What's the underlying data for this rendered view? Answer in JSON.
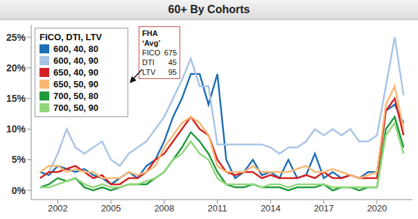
{
  "chart_data": {
    "type": "line",
    "title": "60+ By Cohorts",
    "legend_title": "FICO, DTI, LTV",
    "legend": "upper left",
    "grid": false,
    "annotation": {
      "title": "FHA ‘Avg’",
      "rows": [
        {
          "label": "FICO",
          "value": 675
        },
        {
          "label": "DTI",
          "value": 45
        },
        {
          "label": "LTV",
          "value": 95
        }
      ]
    },
    "x": [
      2001,
      2001.5,
      2002,
      2002.5,
      2003,
      2003.5,
      2004,
      2004.5,
      2005,
      2005.5,
      2006,
      2006.5,
      2007,
      2007.5,
      2008,
      2008.5,
      2009,
      2009.5,
      2010,
      2010.5,
      2011,
      2011.5,
      2012,
      2012.5,
      2013,
      2013.5,
      2014,
      2014.5,
      2015,
      2015.5,
      2016,
      2016.5,
      2017,
      2017.5,
      2018,
      2018.5,
      2019,
      2019.5,
      2020,
      2020.5,
      2021,
      2021.5
    ],
    "xlim": [
      2000.5,
      2022
    ],
    "xticks": [
      2002,
      2005,
      2008,
      2011,
      2014,
      2017,
      2020
    ],
    "ylim": [
      -1.5,
      27
    ],
    "yticks": [
      {
        "value": 0,
        "label": "0%"
      },
      {
        "value": 5,
        "label": "5%"
      },
      {
        "value": 10,
        "label": "10%"
      },
      {
        "value": 15,
        "label": "15%"
      },
      {
        "value": 20,
        "label": "20%"
      },
      {
        "value": 25,
        "label": "25%"
      }
    ],
    "series": [
      {
        "name": "600, 40, 80",
        "color": "#1f6fb5",
        "values": [
          3,
          2.5,
          4,
          3.5,
          3,
          3.5,
          2.5,
          2,
          1,
          2,
          3,
          2,
          4,
          5,
          8,
          12,
          15,
          19,
          19,
          14,
          19,
          5,
          2,
          3,
          5,
          2.5,
          3,
          2,
          5,
          2,
          2.5,
          6,
          2,
          3,
          2,
          2.5,
          2,
          3,
          3,
          13,
          14,
          11
        ]
      },
      {
        "name": "600, 40, 90",
        "color": "#a8c4e6",
        "values": [
          2,
          3,
          6,
          10,
          7,
          6,
          7,
          8,
          5,
          4,
          6,
          7,
          8,
          10,
          12,
          15,
          18,
          21.5,
          17,
          17,
          7.5,
          7.5,
          7.5,
          7.5,
          7.5,
          7.5,
          7,
          6,
          7,
          7,
          8,
          10,
          9,
          10,
          9,
          10,
          8,
          8,
          9,
          17,
          25,
          15.5
        ]
      },
      {
        "name": "650, 40, 90",
        "color": "#d42020",
        "values": [
          2,
          3,
          3,
          3.5,
          4,
          3,
          2,
          2.5,
          1,
          1,
          2,
          2,
          3,
          5,
          6,
          8,
          10,
          12,
          10,
          9,
          5,
          3,
          2.5,
          3,
          3,
          2,
          2.5,
          2,
          2,
          2,
          2.5,
          2,
          3,
          2,
          2,
          2.5,
          2,
          2,
          2,
          13,
          15,
          9
        ]
      },
      {
        "name": "650, 50, 90",
        "color": "#f9b872",
        "values": [
          3,
          4,
          4,
          3,
          3.5,
          3,
          3,
          2,
          2,
          2,
          3,
          2.5,
          3,
          4,
          7,
          9,
          11,
          12,
          11,
          9,
          4,
          3,
          3,
          3,
          4,
          3,
          3,
          3,
          3,
          3.5,
          4,
          3,
          3,
          3.5,
          3,
          2.5,
          2,
          2.5,
          3,
          14,
          17,
          10
        ]
      },
      {
        "name": "700, 50, 80",
        "color": "#1e9a3a",
        "values": [
          0.5,
          1,
          2,
          1.5,
          2,
          0.5,
          0,
          0.5,
          0,
          0.5,
          1,
          1,
          1,
          2,
          3,
          5,
          7,
          9.5,
          8,
          6,
          3,
          1,
          0.5,
          0.5,
          1,
          0.5,
          0.5,
          0.5,
          0,
          0.5,
          0.5,
          0.5,
          1,
          0,
          0.5,
          0.5,
          0,
          0.5,
          0.5,
          10,
          12,
          7
        ]
      },
      {
        "name": "700, 50, 90",
        "color": "#90d67a",
        "values": [
          0.5,
          0.5,
          1,
          1.5,
          2,
          1,
          0.5,
          1,
          0.5,
          0.5,
          1,
          1,
          1.5,
          2,
          3,
          5,
          6,
          8,
          6,
          5,
          2,
          1,
          1,
          1,
          1,
          0.5,
          1,
          1,
          0.5,
          1,
          1,
          1,
          1,
          0.5,
          0.5,
          0.5,
          0.5,
          0.5,
          0.5,
          9,
          11,
          6
        ]
      }
    ]
  }
}
